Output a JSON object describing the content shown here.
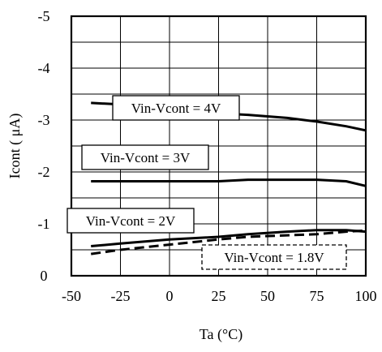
{
  "chart_data": {
    "type": "line",
    "xlabel": "Ta (°C)",
    "ylabel": "Icont ( μA)",
    "xlim": [
      -50,
      100
    ],
    "ylim": [
      0,
      -5
    ],
    "x_ticks": [
      -50,
      -25,
      0,
      25,
      50,
      75,
      100
    ],
    "y_ticks": [
      0,
      -1,
      -2,
      -3,
      -4,
      -5
    ],
    "x_tick_labels": [
      "-50",
      "-25",
      "0",
      "25",
      "50",
      "75",
      "100"
    ],
    "y_tick_labels": [
      "0",
      "-1",
      "-2",
      "-3",
      "-4",
      "-5"
    ],
    "grid": true,
    "legend": "none",
    "series": [
      {
        "label": "Vin-Vcont = 4V",
        "style": "solid",
        "x": [
          -40,
          -25,
          0,
          25,
          40,
          60,
          75,
          90,
          100
        ],
        "y": [
          -3.33,
          -3.3,
          -3.22,
          -3.13,
          -3.1,
          -3.04,
          -2.97,
          -2.88,
          -2.8
        ]
      },
      {
        "label": "Vin-Vcont = 3V",
        "style": "solid",
        "x": [
          -40,
          -25,
          0,
          25,
          40,
          60,
          75,
          90,
          100
        ],
        "y": [
          -1.82,
          -1.82,
          -1.82,
          -1.82,
          -1.85,
          -1.85,
          -1.85,
          -1.82,
          -1.73
        ]
      },
      {
        "label": "Vin-Vcont = 2V",
        "style": "solid",
        "x": [
          -40,
          -25,
          0,
          25,
          40,
          60,
          75,
          90,
          100
        ],
        "y": [
          -0.57,
          -0.62,
          -0.7,
          -0.75,
          -0.8,
          -0.85,
          -0.88,
          -0.88,
          -0.85
        ]
      },
      {
        "label": "Vin-Vcont = 1.8V",
        "style": "dashed",
        "x": [
          -40,
          -25,
          0,
          25,
          40,
          60,
          75,
          90,
          100
        ],
        "y": [
          -0.42,
          -0.5,
          -0.6,
          -0.7,
          -0.75,
          -0.78,
          -0.8,
          -0.85,
          -0.87
        ]
      }
    ],
    "annotations": [
      {
        "text": "Vin-Vcont = 4V",
        "boxed": true,
        "box_style": "solid"
      },
      {
        "text": "Vin-Vcont = 3V",
        "boxed": true,
        "box_style": "solid"
      },
      {
        "text": "Vin-Vcont = 2V",
        "boxed": true,
        "box_style": "solid"
      },
      {
        "text": "Vin-Vcont = 1.8V",
        "boxed": true,
        "box_style": "dashed"
      }
    ]
  }
}
